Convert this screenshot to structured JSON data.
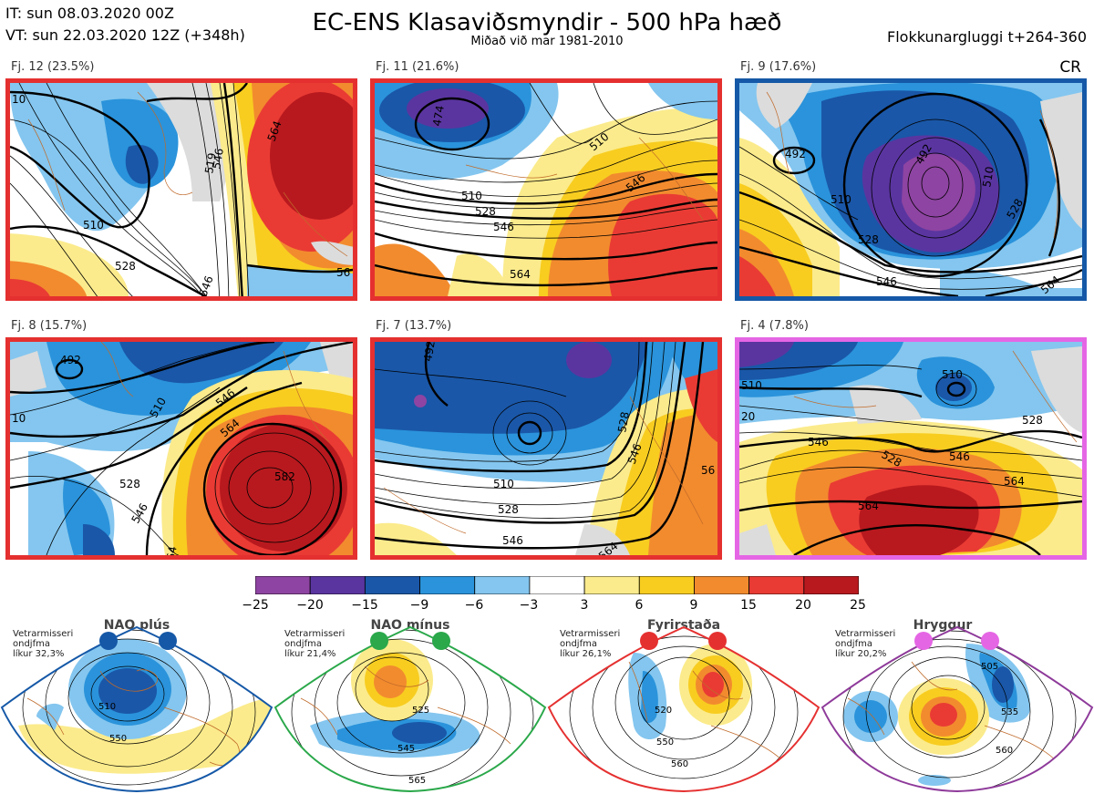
{
  "header": {
    "it_line": "IT: sun 08.03.2020 00Z",
    "vt_line": "VT: sun 22.03.2020 12Z  (+348h)",
    "title": "EC-ENS Klasaviðsmyndir - 500 hPa hæð",
    "subtitle": "Miðað við mar 1981-2010",
    "window": "Flokkunargluggi t+264-360",
    "cr": "CR"
  },
  "colors": {
    "purple": "#8e44a2",
    "indigo": "#5a35a0",
    "darkblue": "#1a57a8",
    "blue": "#2a93db",
    "lightblue": "#84c6ef",
    "white": "#ffffff",
    "lightyellow": "#fbeb8c",
    "yellow": "#f8cd20",
    "orange": "#f28b2e",
    "red": "#e93b34",
    "darkred": "#b8191e",
    "gray": "#dcdcdc"
  },
  "panels": [
    {
      "label": "Fj. 12 (23.5%)",
      "border": "#e53030",
      "regime": "Fyrirstaða",
      "contours": [
        "10",
        "510",
        "528",
        "546",
        "519",
        "564",
        "56",
        "546"
      ]
    },
    {
      "label": "Fj. 11 (21.6%)",
      "border": "#e53030",
      "regime": "Fyrirstaða",
      "contours": [
        "474",
        "510",
        "528",
        "546",
        "564",
        "510",
        "546"
      ]
    },
    {
      "label": "Fj. 9 (17.6%)",
      "border": "#1558a7",
      "regime": "NAO plús",
      "contours": [
        "492",
        "492",
        "510",
        "528",
        "546",
        "564",
        "510",
        "528"
      ]
    },
    {
      "label": "Fj. 8 (15.7%)",
      "border": "#e53030",
      "regime": "Fyrirstaða",
      "contours": [
        "492",
        "10",
        "510",
        "528",
        "546",
        "564",
        "582",
        "546",
        "64"
      ]
    },
    {
      "label": "Fj. 7 (13.7%)",
      "border": "#e53030",
      "regime": "Fyrirstaða",
      "contours": [
        "492",
        "510",
        "528",
        "546",
        "564",
        "528",
        "546",
        "56"
      ]
    },
    {
      "label": "Fj. 4 (7.8%)",
      "border": "#e566e5",
      "regime": "Hryggur",
      "contours": [
        "510",
        "510",
        "528",
        "546",
        "528",
        "546",
        "564",
        "564",
        "20"
      ]
    }
  ],
  "colorbar": {
    "ticks": [
      "−25",
      "−20",
      "−15",
      "−9",
      "−6",
      "−3",
      "3",
      "6",
      "9",
      "15",
      "20",
      "25"
    ],
    "colors": [
      "#8e44a2",
      "#5a35a0",
      "#1a57a8",
      "#2a93db",
      "#84c6ef",
      "#ffffff",
      "#fbeb8c",
      "#f8cd20",
      "#f28b2e",
      "#e93b34",
      "#b8191e"
    ]
  },
  "regimes": [
    {
      "name": "NAO plús",
      "color": "#1558a7",
      "dot": "#1558a7",
      "note1": "Vetrarmisseri",
      "note2": "ondjfma",
      "note3": "líkur 32,3%",
      "contours": [
        "510",
        "550"
      ]
    },
    {
      "name": "NAO mínus",
      "color": "#2aa84a",
      "dot": "#2aa84a",
      "note1": "Vetrarmisseri",
      "note2": "ondjfma",
      "note3": "líkur 21,4%",
      "contours": [
        "525",
        "545",
        "565"
      ]
    },
    {
      "name": "Fyrirstaða",
      "color": "#e53030",
      "dot": "#e53030",
      "note1": "Vetrarmisseri",
      "note2": "ondjfma",
      "note3": "líkur 26,1%",
      "contours": [
        "520",
        "550",
        "560"
      ]
    },
    {
      "name": "Hryggur",
      "color": "#8e3a9a",
      "dot": "#e566e5",
      "note1": "Vetrarmisseri",
      "note2": "ondjfma",
      "note3": "líkur 20,2%",
      "contours": [
        "505",
        "535",
        "560"
      ]
    }
  ]
}
